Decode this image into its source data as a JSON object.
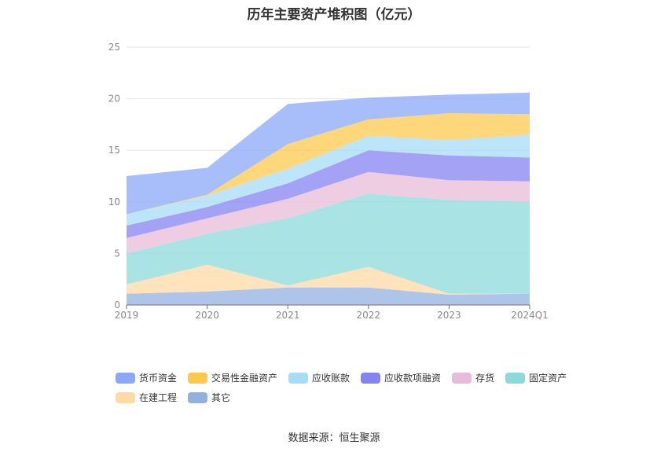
{
  "title": "历年主要资产堆积图（亿元）",
  "source": "数据来源：恒生聚源",
  "chart_data": {
    "type": "area",
    "stacked": true,
    "categories": [
      "2019",
      "2020",
      "2021",
      "2022",
      "2023",
      "2024Q1"
    ],
    "ylim": [
      0,
      25
    ],
    "yticks": [
      0,
      5,
      10,
      15,
      20,
      25
    ],
    "grid": true,
    "legend_position": "bottom",
    "series": [
      {
        "name": "其它",
        "color": "#93b0e0",
        "values": [
          1.1,
          1.3,
          1.7,
          1.7,
          1.0,
          1.1
        ]
      },
      {
        "name": "在建工程",
        "color": "#fdd9a6",
        "values": [
          0.9,
          2.6,
          0.2,
          2.0,
          0.1,
          0.0
        ]
      },
      {
        "name": "固定资产",
        "color": "#8dd9d9",
        "values": [
          3.0,
          3.0,
          6.5,
          7.1,
          9.1,
          8.9
        ]
      },
      {
        "name": "存货",
        "color": "#e8bcd9",
        "values": [
          1.5,
          1.5,
          1.9,
          2.1,
          1.9,
          2.0
        ]
      },
      {
        "name": "应收款项融资",
        "color": "#8483f0",
        "values": [
          1.2,
          1.1,
          1.5,
          2.1,
          2.4,
          2.3
        ]
      },
      {
        "name": "应收账款",
        "color": "#a6dcf7",
        "values": [
          1.1,
          1.1,
          1.4,
          1.4,
          1.5,
          2.2
        ]
      },
      {
        "name": "交易性金融资产",
        "color": "#fdc94d",
        "values": [
          0.0,
          0.1,
          2.4,
          1.6,
          2.6,
          2.0
        ]
      },
      {
        "name": "货币资金",
        "color": "#8aa8f8",
        "values": [
          3.7,
          2.6,
          3.9,
          2.1,
          1.8,
          2.1
        ]
      }
    ],
    "legend_order": [
      "货币资金",
      "交易性金融资产",
      "应收账款",
      "应收款项融资",
      "存货",
      "固定资产",
      "在建工程",
      "其它"
    ]
  }
}
